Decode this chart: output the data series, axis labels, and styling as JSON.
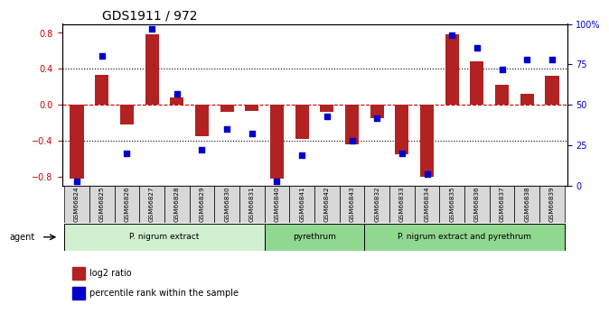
{
  "title": "GDS1911 / 972",
  "samples": [
    "GSM66824",
    "GSM66825",
    "GSM66826",
    "GSM66827",
    "GSM66828",
    "GSM66829",
    "GSM66830",
    "GSM66831",
    "GSM66840",
    "GSM66841",
    "GSM66842",
    "GSM66843",
    "GSM66832",
    "GSM66833",
    "GSM66834",
    "GSM66835",
    "GSM66836",
    "GSM66837",
    "GSM66838",
    "GSM66839"
  ],
  "log2_ratio": [
    -0.82,
    0.33,
    -0.22,
    0.78,
    0.08,
    -0.35,
    -0.08,
    -0.07,
    -0.82,
    -0.38,
    -0.08,
    -0.44,
    -0.15,
    -0.55,
    -0.8,
    0.78,
    0.48,
    0.22,
    0.12,
    0.32
  ],
  "percentile": [
    3,
    80,
    20,
    97,
    57,
    22,
    35,
    32,
    3,
    19,
    43,
    28,
    42,
    20,
    7,
    93,
    85,
    72,
    78,
    78
  ],
  "groups": [
    {
      "label": "P. nigrum extract",
      "start": 0,
      "end": 8,
      "color": "#c8f0c8"
    },
    {
      "label": "pyrethrum",
      "start": 8,
      "end": 12,
      "color": "#90ee90"
    },
    {
      "label": "P. nigrum extract and pyrethrum",
      "start": 12,
      "end": 20,
      "color": "#90ee90"
    }
  ],
  "bar_color": "#b22222",
  "dot_color": "#0000cc",
  "zero_line_color": "#cc0000",
  "grid_color": "#000000",
  "ylim_left": [
    -0.9,
    0.9
  ],
  "ylim_right": [
    0,
    100
  ],
  "yticks_left": [
    -0.8,
    -0.4,
    0,
    0.4,
    0.8
  ],
  "yticks_right": [
    0,
    25,
    50,
    75,
    100
  ],
  "ytick_labels_right": [
    "0",
    "25",
    "50",
    "75",
    "100%"
  ],
  "bg_color": "#ffffff",
  "xlabel_color": "#555555",
  "bar_width": 0.55
}
